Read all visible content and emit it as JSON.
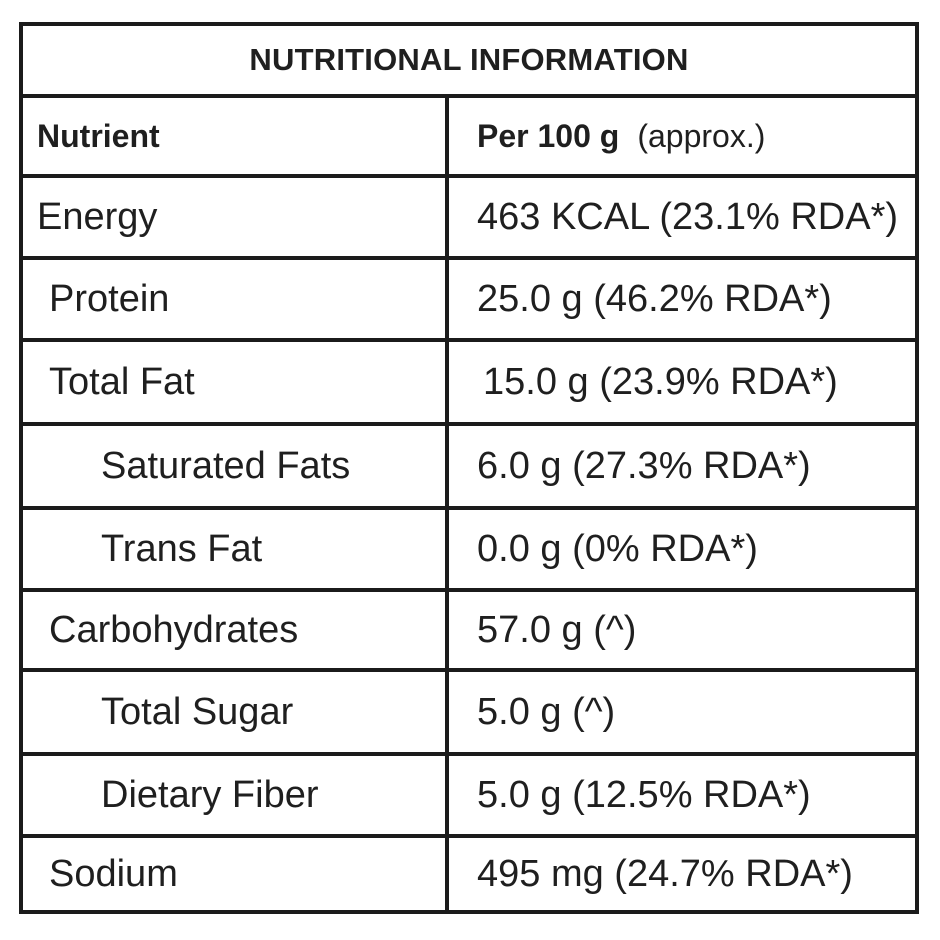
{
  "table": {
    "title": "NUTRITIONAL INFORMATION",
    "header": {
      "nutrient_label": "Nutrient",
      "per_label": "Per 100 g",
      "approx_label": "(approx.)"
    },
    "rows": [
      {
        "nutrient": "Energy",
        "value": "463 KCAL (23.1% RDA*)",
        "indent": 0
      },
      {
        "nutrient": "Protein",
        "value": "25.0 g  (46.2% RDA*)",
        "indent": 1
      },
      {
        "nutrient": "Total Fat",
        "value": "15.0 g (23.9% RDA*)",
        "indent": 1
      },
      {
        "nutrient": "Saturated Fats",
        "value": "6.0 g (27.3% RDA*)",
        "indent": 2
      },
      {
        "nutrient": "Trans Fat",
        "value": "0.0 g (0% RDA*)",
        "indent": 2
      },
      {
        "nutrient": "Carbohydrates",
        "value": "57.0 g (^)",
        "indent": 1
      },
      {
        "nutrient": "Total Sugar",
        "value": "5.0 g (^)",
        "indent": 2
      },
      {
        "nutrient": "Dietary Fiber",
        "value": "5.0 g (12.5% RDA*)",
        "indent": 2
      },
      {
        "nutrient": "Sodium",
        "value": "495 mg (24.7% RDA*)",
        "indent": 1
      }
    ]
  },
  "colors": {
    "border": "#1b1b1b",
    "text": "#1f1f1f",
    "background": "#ffffff"
  }
}
